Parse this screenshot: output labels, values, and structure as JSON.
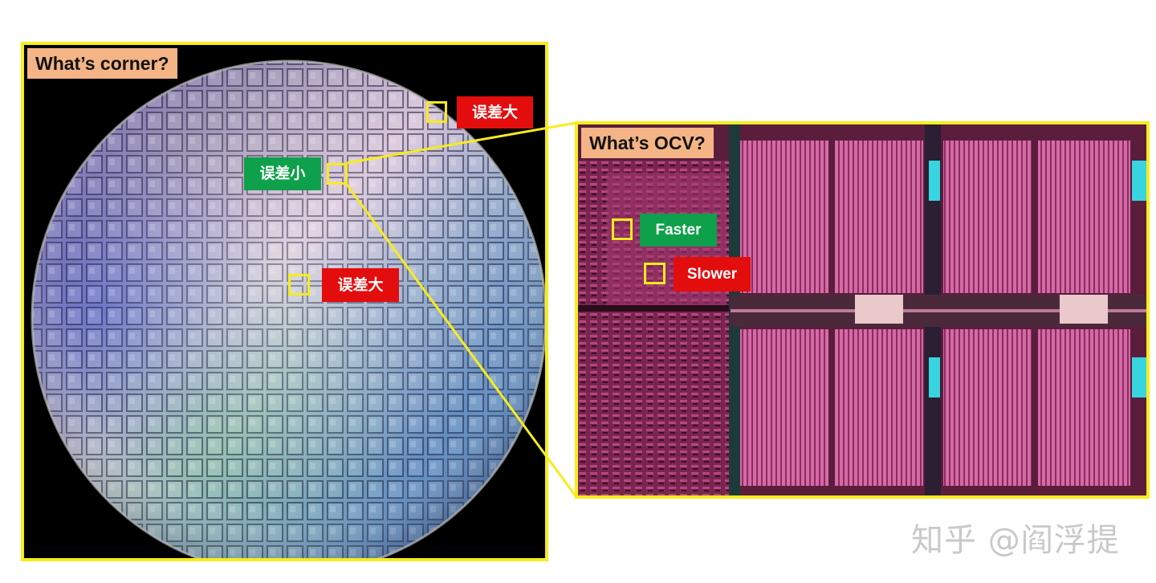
{
  "wafer": {
    "title": "What’s corner?",
    "labels": {
      "top_right": "误差大",
      "center_left": "误差小",
      "middle": "误差大"
    }
  },
  "die": {
    "title": "What’s OCV?",
    "labels": {
      "faster": "Faster",
      "slower": "Slower"
    }
  },
  "watermark": "知乎 @阎浮提",
  "colors": {
    "frame": "#f7ec1d",
    "title_bg": "#f4b485",
    "error_large": "#e40d0d",
    "error_small": "#0ea04a"
  }
}
